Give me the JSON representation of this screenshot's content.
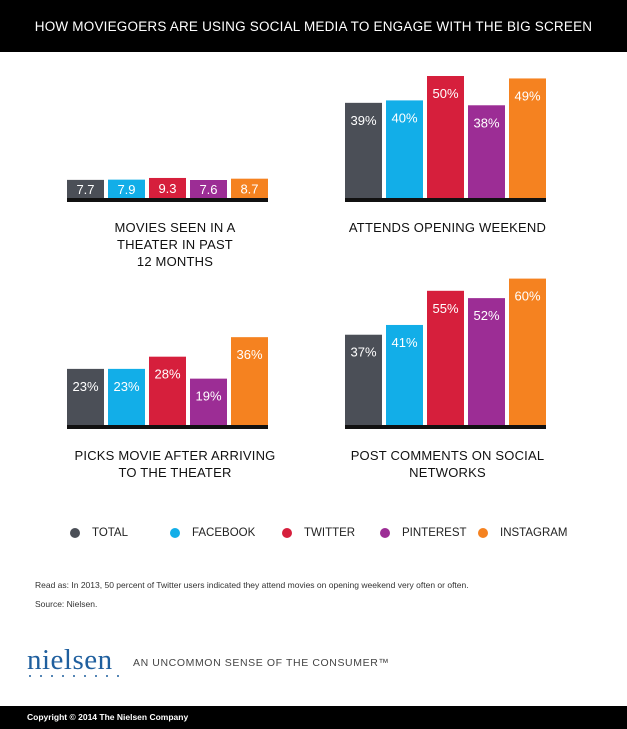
{
  "header": {
    "title": "HOW MOVIEGOERS ARE USING SOCIAL MEDIA TO ENGAGE WITH THE BIG SCREEN"
  },
  "colors": {
    "total": "#4b4f57",
    "facebook": "#12aee8",
    "twitter": "#d61f3c",
    "pinterest": "#9c2d95",
    "instagram": "#f58220"
  },
  "legend": [
    {
      "label": "TOTAL",
      "color": "#4b4f57"
    },
    {
      "label": "FACEBOOK",
      "color": "#12aee8"
    },
    {
      "label": "TWITTER",
      "color": "#d61f3c"
    },
    {
      "label": "PINTEREST",
      "color": "#9c2d95"
    },
    {
      "label": "INSTAGRAM",
      "color": "#f58220"
    }
  ],
  "chart_data": [
    {
      "type": "bar",
      "title": "MOVIES SEEN IN A THEATER IN PAST 12 MONTHS",
      "categories": [
        "TOTAL",
        "FACEBOOK",
        "TWITTER",
        "PINTEREST",
        "INSTAGRAM"
      ],
      "values": [
        7.7,
        7.9,
        9.3,
        7.6,
        8.7
      ],
      "labels": [
        "7.7",
        "7.9",
        "9.3",
        "7.6",
        "8.7"
      ]
    },
    {
      "type": "bar",
      "title": "ATTENDS OPENING WEEKEND",
      "categories": [
        "TOTAL",
        "FACEBOOK",
        "TWITTER",
        "PINTEREST",
        "INSTAGRAM"
      ],
      "values": [
        39,
        40,
        50,
        38,
        49
      ],
      "labels": [
        "39%",
        "40%",
        "50%",
        "38%",
        "49%"
      ]
    },
    {
      "type": "bar",
      "title": "PICKS MOVIE AFTER ARRIVING TO THE THEATER",
      "categories": [
        "TOTAL",
        "FACEBOOK",
        "TWITTER",
        "PINTEREST",
        "INSTAGRAM"
      ],
      "values": [
        23,
        23,
        28,
        19,
        36
      ],
      "labels": [
        "23%",
        "23%",
        "28%",
        "19%",
        "36%"
      ]
    },
    {
      "type": "bar",
      "title": "POST COMMENTS ON SOCIAL NETWORKS",
      "categories": [
        "TOTAL",
        "FACEBOOK",
        "TWITTER",
        "PINTEREST",
        "INSTAGRAM"
      ],
      "values": [
        37,
        41,
        55,
        52,
        60
      ],
      "labels": [
        "37%",
        "41%",
        "55%",
        "52%",
        "60%"
      ]
    }
  ],
  "captions": {
    "movies_seen": [
      "MOVIES SEEN IN A",
      "THEATER IN PAST",
      "12 MONTHS"
    ],
    "opening_weekend": [
      "ATTENDS OPENING WEEKEND"
    ],
    "picks_movie": [
      "PICKS MOVIE AFTER ARRIVING",
      "TO THE THEATER"
    ],
    "post_comments": [
      "POST COMMENTS ON SOCIAL",
      "NETWORKS"
    ]
  },
  "notes": {
    "read_as": "Read as: In 2013, 50 percent of Twitter users indicated they attend movies on opening weekend very often or often.",
    "source": "Source: Nielsen."
  },
  "branding": {
    "logo": "nielsen",
    "tagline": "AN UNCOMMON SENSE OF THE CONSUMER™"
  },
  "footer": {
    "copyright": "Copyright © 2014 The Nielsen Company"
  }
}
